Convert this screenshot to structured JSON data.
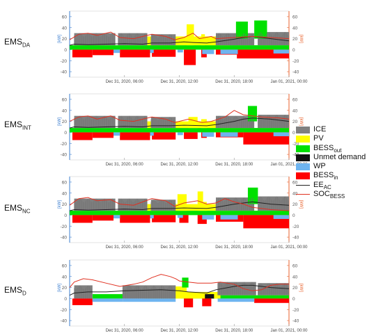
{
  "panels": [
    {
      "label": "EMS",
      "label_sub": "DA"
    },
    {
      "label": "EMS",
      "label_sub": "INT"
    },
    {
      "label": "EMS",
      "label_sub": "NC"
    },
    {
      "label": "EMS",
      "label_sub": "D"
    }
  ],
  "legend": [
    {
      "label": "ICE",
      "sub": "",
      "kind": "patch",
      "color": "#808080"
    },
    {
      "label": "PV",
      "sub": "",
      "kind": "patch",
      "color": "#ffff00"
    },
    {
      "label": "BESS",
      "sub": "out",
      "kind": "patch",
      "color": "#00e000"
    },
    {
      "label": "Unmet demand",
      "sub": "",
      "kind": "patch",
      "color": "#111111"
    },
    {
      "label": "WP",
      "sub": "",
      "kind": "patch",
      "color": "#6eb4f0"
    },
    {
      "label": "BESS",
      "sub": "in",
      "kind": "patch",
      "color": "#ff0000"
    },
    {
      "label": "EE",
      "sub": "AC",
      "kind": "line",
      "color": "#222222"
    },
    {
      "label": "SOC",
      "sub": "BESS",
      "kind": "line",
      "color": "#e03020"
    }
  ],
  "chart_data": {
    "type": "area",
    "x_ticks": [
      "Dec 31, 2020, 06:00",
      "Dec 31, 2020, 12:00",
      "Dec 31, 2020, 18:00",
      "Jan 01, 2021, 00:00"
    ],
    "x_range_hours": [
      0,
      24
    ],
    "y_left_label": "[kW]",
    "y_left_ticks": [
      -40,
      -20,
      0,
      20,
      40,
      60
    ],
    "y_left_lim": [
      -50,
      70
    ],
    "y_right_label": "[kW]",
    "y_right_ticks": [
      -40,
      -20,
      0,
      20,
      40,
      60
    ],
    "left_axis_color": "#3d7fd0",
    "right_axis_color": "#e8622c",
    "colors": {
      "ICE": "#808080",
      "PV": "#ffff00",
      "BESS_out": "#00e000",
      "Unmet": "#111111",
      "WP": "#6eb4f0",
      "BESS_in": "#ff0000",
      "EE_AC": "#222222",
      "SOC_BESS": "#e03020"
    },
    "panels": [
      {
        "name": "EMS DA",
        "ice": [
          [
            0.5,
            5,
            22
          ],
          [
            5.3,
            8.5,
            22
          ],
          [
            8.9,
            11.6,
            20
          ],
          [
            16,
            20.2,
            22
          ],
          [
            20.6,
            24,
            24
          ]
        ],
        "bess_out": [
          [
            0,
            24,
            8
          ]
        ],
        "pv": [
          [
            8.5,
            17.5,
            16
          ]
        ],
        "pv_peak": [
          [
            12.8,
            13.6,
            38
          ],
          [
            14.4,
            14.8,
            20
          ]
        ],
        "green_top": [
          [
            18.2,
            19.5,
            31
          ],
          [
            20.2,
            21.6,
            33
          ]
        ],
        "bess_in": [
          [
            0.3,
            2.5,
            -14
          ],
          [
            2.5,
            4.8,
            -10
          ],
          [
            5.5,
            8.8,
            -14
          ],
          [
            9,
            11.6,
            -13
          ],
          [
            12.5,
            13.8,
            -28
          ],
          [
            14.4,
            15,
            -14
          ],
          [
            16,
            18.3,
            -9
          ],
          [
            18.3,
            24,
            -16
          ]
        ],
        "wp": [
          [
            4.8,
            5.5,
            -6
          ],
          [
            8.8,
            9.2,
            -6
          ],
          [
            11.8,
            12.4,
            -5
          ],
          [
            14.5,
            15.8,
            -8
          ],
          [
            16.5,
            18.4,
            -8
          ],
          [
            22.3,
            24,
            -7
          ]
        ],
        "ee": [
          [
            0,
            8
          ],
          [
            0.5,
            10
          ],
          [
            2,
            9
          ],
          [
            4,
            10
          ],
          [
            6,
            11
          ],
          [
            8,
            10
          ],
          [
            9,
            12
          ],
          [
            11,
            12
          ],
          [
            12.5,
            14
          ],
          [
            13.5,
            13
          ],
          [
            15,
            12
          ],
          [
            16,
            14
          ],
          [
            18,
            19
          ],
          [
            19,
            22
          ],
          [
            20,
            24
          ],
          [
            22,
            20
          ],
          [
            24,
            16
          ]
        ],
        "soc": [
          [
            0,
            18
          ],
          [
            1,
            28
          ],
          [
            2,
            30
          ],
          [
            3,
            26
          ],
          [
            4.5,
            32
          ],
          [
            5.5,
            22
          ],
          [
            7,
            20
          ],
          [
            8,
            24
          ],
          [
            9,
            28
          ],
          [
            10.5,
            24
          ],
          [
            11.5,
            18
          ],
          [
            12.5,
            22
          ],
          [
            13.5,
            30
          ],
          [
            14.2,
            20
          ],
          [
            15.5,
            24
          ],
          [
            16,
            20
          ],
          [
            17,
            21
          ],
          [
            18,
            22
          ],
          [
            20,
            24
          ],
          [
            22,
            22
          ],
          [
            23,
            21
          ],
          [
            24,
            20
          ]
        ]
      },
      {
        "name": "EMS INT",
        "ice": [
          [
            0.5,
            5,
            22
          ],
          [
            5.3,
            8.5,
            22
          ],
          [
            8.9,
            11.6,
            20
          ],
          [
            16,
            20.2,
            22
          ],
          [
            20.6,
            24,
            24
          ]
        ],
        "bess_out": [
          [
            0,
            24,
            8
          ]
        ],
        "pv": [
          [
            8.5,
            17.5,
            12
          ]
        ],
        "pv_peak": [
          [
            13,
            14,
            20
          ],
          [
            14.4,
            15,
            16
          ]
        ],
        "green_top": [
          [
            19.5,
            20.5,
            28
          ]
        ],
        "bess_in": [
          [
            0.3,
            2.5,
            -14
          ],
          [
            2.5,
            4.8,
            -10
          ],
          [
            5.5,
            8.8,
            -14
          ],
          [
            9,
            11.6,
            -13
          ],
          [
            12.5,
            14,
            -12
          ],
          [
            14.4,
            15,
            -10
          ],
          [
            16,
            19,
            -9
          ],
          [
            19,
            24,
            -22
          ]
        ],
        "wp": [
          [
            4.8,
            5.5,
            -6
          ],
          [
            8.8,
            9.2,
            -6
          ],
          [
            11.8,
            12.4,
            -5
          ],
          [
            14.5,
            15.8,
            -8
          ],
          [
            16.5,
            18.4,
            -8
          ],
          [
            22.3,
            24,
            -7
          ]
        ],
        "ee": [
          [
            0,
            8
          ],
          [
            0.5,
            10
          ],
          [
            2,
            9
          ],
          [
            4,
            10
          ],
          [
            6,
            11
          ],
          [
            8,
            10
          ],
          [
            9,
            12
          ],
          [
            11,
            12
          ],
          [
            12.5,
            13
          ],
          [
            15,
            12
          ],
          [
            16,
            14
          ],
          [
            18,
            20
          ],
          [
            19,
            24
          ],
          [
            20,
            26
          ],
          [
            22,
            24
          ],
          [
            24,
            20
          ]
        ],
        "soc": [
          [
            0,
            20
          ],
          [
            1,
            28
          ],
          [
            2,
            30
          ],
          [
            3,
            24
          ],
          [
            4.5,
            30
          ],
          [
            5.5,
            22
          ],
          [
            7,
            20
          ],
          [
            8,
            24
          ],
          [
            9,
            28
          ],
          [
            10.5,
            24
          ],
          [
            11.5,
            18
          ],
          [
            13,
            24
          ],
          [
            14.5,
            18
          ],
          [
            15.5,
            20
          ],
          [
            17,
            28
          ],
          [
            18,
            40
          ],
          [
            19,
            32
          ],
          [
            20,
            30
          ],
          [
            21,
            28
          ],
          [
            23,
            26
          ],
          [
            24,
            24
          ]
        ]
      },
      {
        "name": "EMS NC",
        "ice": [
          [
            0.5,
            5,
            22
          ],
          [
            5.3,
            8.5,
            22
          ],
          [
            8.9,
            11.6,
            20
          ],
          [
            16,
            20.2,
            24
          ],
          [
            20.6,
            24,
            26
          ]
        ],
        "bess_out": [
          [
            0,
            24,
            8
          ]
        ],
        "pv": [
          [
            8.5,
            17.5,
            12
          ]
        ],
        "pv_peak": [
          [
            11.8,
            12.8,
            30
          ],
          [
            14,
            14.6,
            35
          ],
          [
            14.6,
            15,
            16
          ]
        ],
        "green_top": [
          [
            19.5,
            20.6,
            30
          ]
        ],
        "bess_in": [
          [
            0.3,
            2.5,
            -14
          ],
          [
            2.5,
            4.8,
            -10
          ],
          [
            5.5,
            8.8,
            -14
          ],
          [
            9,
            11.6,
            -13
          ],
          [
            12,
            13,
            -14
          ],
          [
            14,
            15,
            -16
          ],
          [
            16,
            19,
            -12
          ],
          [
            19,
            24,
            -24
          ]
        ],
        "wp": [
          [
            4.8,
            5.5,
            -6
          ],
          [
            8.8,
            9.2,
            -6
          ],
          [
            11.8,
            12.4,
            -5
          ],
          [
            14.5,
            15.8,
            -8
          ],
          [
            16.5,
            18.4,
            -8
          ],
          [
            22.3,
            24,
            -7
          ]
        ],
        "ee": [
          [
            0,
            8
          ],
          [
            0.5,
            10
          ],
          [
            2,
            9
          ],
          [
            4,
            10
          ],
          [
            6,
            11
          ],
          [
            8,
            10
          ],
          [
            9,
            12
          ],
          [
            11,
            12
          ],
          [
            12.5,
            13
          ],
          [
            15,
            12
          ],
          [
            16,
            14
          ],
          [
            18,
            20
          ],
          [
            19,
            22
          ],
          [
            20,
            24
          ],
          [
            22,
            20
          ],
          [
            24,
            18
          ]
        ],
        "soc": [
          [
            0,
            18
          ],
          [
            1,
            30
          ],
          [
            2,
            32
          ],
          [
            3,
            26
          ],
          [
            4.5,
            28
          ],
          [
            5.5,
            20
          ],
          [
            7,
            18
          ],
          [
            8,
            24
          ],
          [
            9,
            30
          ],
          [
            10.5,
            26
          ],
          [
            11.5,
            16
          ],
          [
            12.5,
            22
          ],
          [
            14,
            26
          ],
          [
            15,
            20
          ],
          [
            16,
            22
          ],
          [
            17,
            30
          ],
          [
            18,
            24
          ],
          [
            19,
            20
          ],
          [
            20,
            14
          ],
          [
            22,
            10
          ],
          [
            24,
            8
          ]
        ]
      },
      {
        "name": "EMS D",
        "ice": [
          [
            0.5,
            2.5,
            24
          ],
          [
            5.8,
            11.6,
            24
          ],
          [
            16.2,
            20.4,
            24
          ],
          [
            20.6,
            24,
            22
          ]
        ],
        "bess_out": [
          [
            2.5,
            5.8,
            8
          ],
          [
            11.6,
            24,
            6
          ]
        ],
        "pv": [
          [
            8.2,
            16.5,
            12
          ]
        ],
        "pv_peak": [
          [
            11.5,
            12.2,
            22
          ],
          [
            12.2,
            12.8,
            16
          ]
        ],
        "green_top": [
          [
            12.3,
            13,
            18
          ]
        ],
        "bess_in": [
          [
            0.3,
            2.5,
            -12
          ],
          [
            12.5,
            13.5,
            -16
          ],
          [
            14.5,
            15.5,
            -14
          ],
          [
            20.2,
            24,
            -8
          ]
        ],
        "wp": [
          [
            2.5,
            5.8,
            -6
          ],
          [
            5.8,
            11.6,
            -6
          ],
          [
            16.2,
            20.2,
            -6
          ]
        ],
        "unmet": [
          [
            14.8,
            15.8,
            8
          ]
        ],
        "ee": [
          [
            0,
            6
          ],
          [
            0.5,
            10
          ],
          [
            2,
            12
          ],
          [
            4,
            12
          ],
          [
            6,
            14
          ],
          [
            8,
            15
          ],
          [
            10,
            16
          ],
          [
            12,
            14
          ],
          [
            13,
            12
          ],
          [
            15,
            10
          ],
          [
            16,
            16
          ],
          [
            18,
            22
          ],
          [
            19,
            24
          ],
          [
            20,
            24
          ],
          [
            22,
            20
          ],
          [
            24,
            18
          ]
        ],
        "soc": [
          [
            0,
            20
          ],
          [
            0.5,
            30
          ],
          [
            1.5,
            36
          ],
          [
            2.5,
            34
          ],
          [
            4,
            28
          ],
          [
            5.5,
            22
          ],
          [
            7,
            26
          ],
          [
            8,
            30
          ],
          [
            9,
            38
          ],
          [
            10,
            44
          ],
          [
            11,
            40
          ],
          [
            11.6,
            36
          ],
          [
            12,
            32
          ],
          [
            13,
            30
          ],
          [
            14,
            28
          ],
          [
            15.5,
            28
          ],
          [
            16.5,
            30
          ],
          [
            18,
            26
          ],
          [
            19,
            18
          ],
          [
            20,
            14
          ],
          [
            21,
            16
          ],
          [
            22,
            24
          ],
          [
            23,
            26
          ],
          [
            24,
            26
          ]
        ]
      }
    ]
  }
}
